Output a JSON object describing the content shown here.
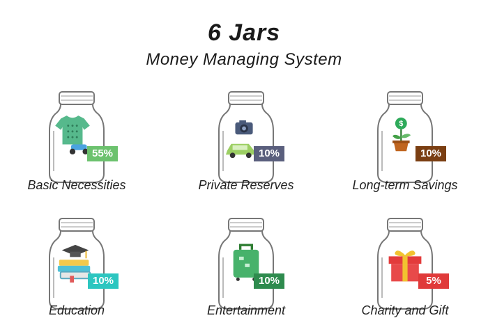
{
  "header": {
    "title": "6 Jars",
    "subtitle": "Money Managing System"
  },
  "jars": [
    {
      "label": "Basic Necessities",
      "percent": "55%",
      "badge_color": "#6cc26e",
      "icon": "shirt-and-scooter-icon"
    },
    {
      "label": "Private Reserves",
      "percent": "10%",
      "badge_color": "#5a5f7d",
      "icon": "camera-and-car-icon"
    },
    {
      "label": "Long-term Savings",
      "percent": "10%",
      "badge_color": "#7a3e12",
      "icon": "money-plant-icon"
    },
    {
      "label": "Education",
      "percent": "10%",
      "badge_color": "#2cc6c0",
      "icon": "graduation-cap-and-books-icon"
    },
    {
      "label": "Entertainment",
      "percent": "10%",
      "badge_color": "#2e8b4e",
      "icon": "suitcase-icon"
    },
    {
      "label": "Charity and Gift",
      "percent": "5%",
      "badge_color": "#e03a3a",
      "icon": "gift-box-icon"
    }
  ]
}
